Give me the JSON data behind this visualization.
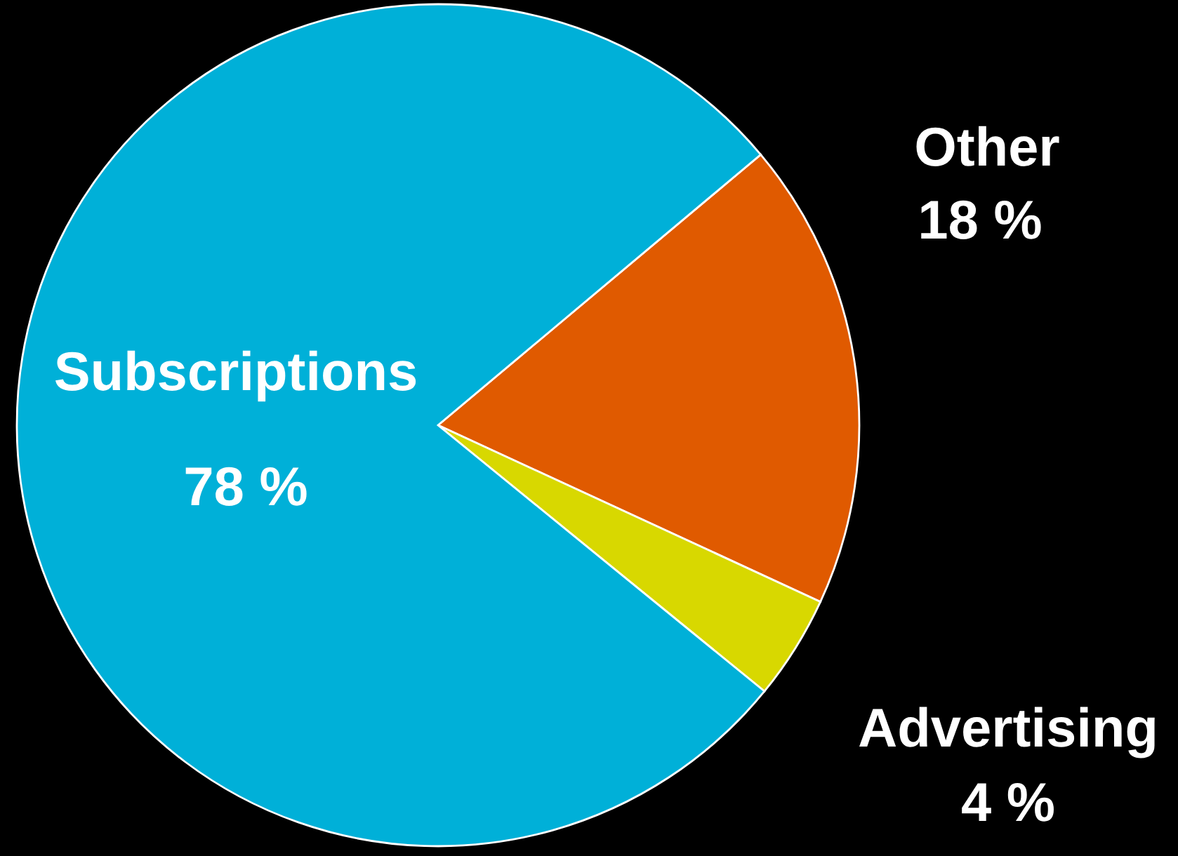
{
  "chart_data": {
    "type": "pie",
    "categories": [
      "Other",
      "Advertising",
      "Subscriptions"
    ],
    "values": [
      18,
      4,
      78
    ],
    "value_labels": [
      "18 %",
      "4 %",
      "78 %"
    ],
    "colors": [
      "#e05a00",
      "#d8d800",
      "#00b0d8"
    ]
  }
}
